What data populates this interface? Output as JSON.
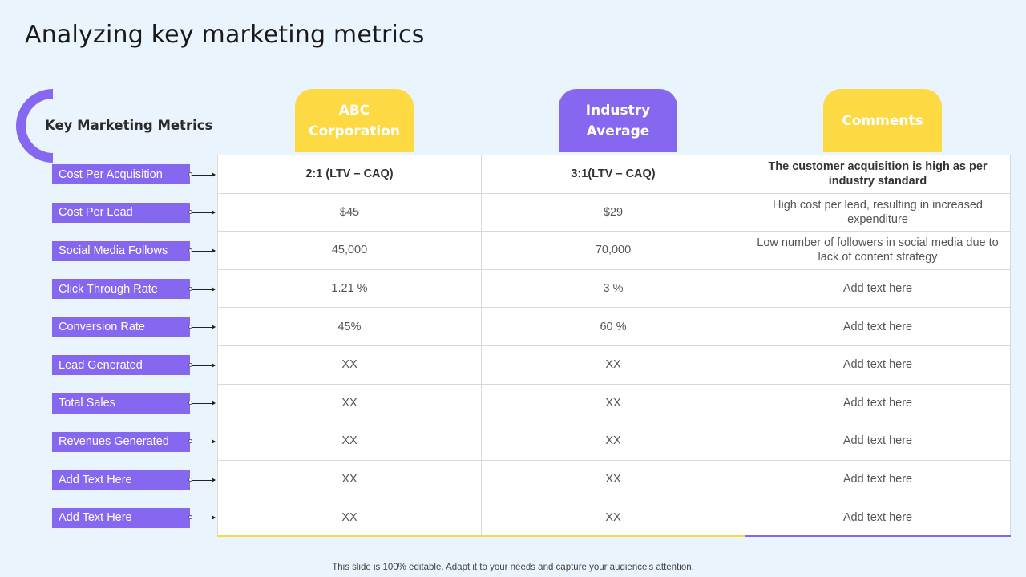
{
  "title": "Analyzing key marketing metrics",
  "key_label": "Key Marketing Metrics",
  "columns": [
    {
      "label": "ABC\nCorporation",
      "color": "yellow"
    },
    {
      "label": "Industry\nAverage",
      "color": "purple"
    },
    {
      "label": "Comments",
      "color": "yellow"
    }
  ],
  "rows": [
    {
      "metric": "Cost Per Acquisition",
      "abc": "2:1 (LTV – CAQ)",
      "industry": "3:1(LTV – CAQ)",
      "comment": "The customer acquisition is high as per industry standard",
      "bold": true
    },
    {
      "metric": "Cost Per Lead",
      "abc": "$45",
      "industry": "$29",
      "comment": "High cost per lead, resulting in increased expenditure"
    },
    {
      "metric": "Social Media Follows",
      "abc": "45,000",
      "industry": "70,000",
      "comment": "Low number of followers in social media due to lack of content strategy"
    },
    {
      "metric": "Click Through Rate",
      "abc": "1.21 %",
      "industry": "3 %",
      "comment": "Add text here"
    },
    {
      "metric": "Conversion Rate",
      "abc": "45%",
      "industry": "60 %",
      "comment": "Add text here"
    },
    {
      "metric": "Lead Generated",
      "abc": "XX",
      "industry": "XX",
      "comment": "Add text here"
    },
    {
      "metric": "Total Sales",
      "abc": "XX",
      "industry": "XX",
      "comment": "Add text here"
    },
    {
      "metric": "Revenues Generated",
      "abc": "XX",
      "industry": "XX",
      "comment": "Add text here"
    },
    {
      "metric": "Add Text Here",
      "abc": "XX",
      "industry": "XX",
      "comment": "Add text here"
    },
    {
      "metric": "Add Text Here",
      "abc": "XX",
      "industry": "XX",
      "comment": "Add text here"
    }
  ],
  "footer": "This slide is 100% editable. Adapt it to your needs and capture your audience's attention.",
  "colors": {
    "yellow": "#fdd944",
    "purple": "#8668f0",
    "background": "#eaf4fc"
  }
}
